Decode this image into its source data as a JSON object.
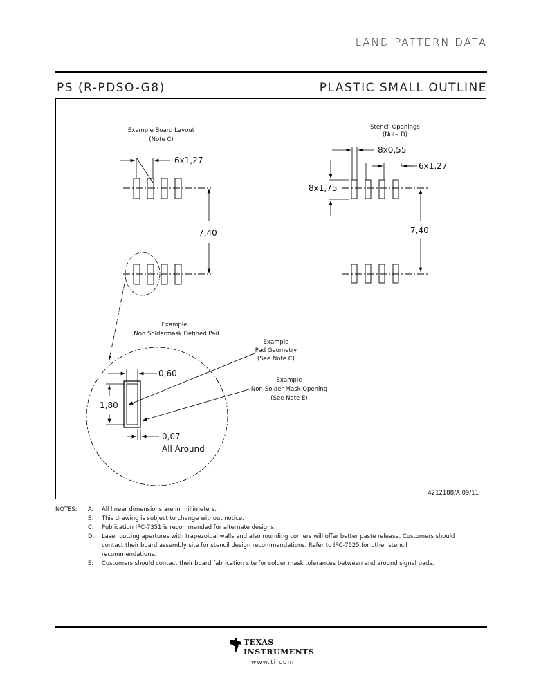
{
  "header": {
    "section_title": "LAND PATTERN DATA"
  },
  "package": {
    "code": "PS (R-PDSO-G8)",
    "description": "PLASTIC SMALL OUTLINE"
  },
  "drawing": {
    "board_layout_title": "Example Board Layout",
    "board_layout_note": "(Note C)",
    "board_pitch": "6x1,27",
    "board_span": "7,40",
    "stencil_title": "Stencil Openings",
    "stencil_note": "(Note D)",
    "stencil_width": "8x0,55",
    "stencil_pitch": "6x1,27",
    "stencil_length": "8x1,75",
    "stencil_span": "7,40",
    "detail_title_1": "Example",
    "detail_title_2": "Non Soldermask Defined Pad",
    "pad_width": "0,60",
    "pad_length": "1,80",
    "clearance": "0,07",
    "clearance_note": "All Around",
    "pad_geom_1": "Example",
    "pad_geom_2": "Pad Geometry",
    "pad_geom_3": "(See Note C)",
    "mask_open_1": "Example",
    "mask_open_2": "Non-Solder Mask Opening",
    "mask_open_3": "(See Note E)",
    "drawing_number": "4212188/A  09/11"
  },
  "notes": {
    "label": "NOTES:",
    "items": [
      {
        "letter": "A.",
        "text": "All linear dimensions are in millimeters."
      },
      {
        "letter": "B.",
        "text": "This drawing is subject to change without notice."
      },
      {
        "letter": "C.",
        "text": "Publication IPC-7351 is recommended for alternate designs."
      },
      {
        "letter": "D.",
        "text": "Laser cutting apertures with trapezoidal walls and also rounding corners will offer better paste release.  Customers should contact their board assembly site for stencil design recommendations. Refer to IPC-7525 for other stencil recommendations."
      },
      {
        "letter": "E.",
        "text": "Customers should contact their board fabrication site for solder mask tolerances between and around signal pads."
      }
    ]
  },
  "footer": {
    "brand_line1": "TEXAS",
    "brand_line2": "INSTRUMENTS",
    "url": "www.ti.com"
  }
}
